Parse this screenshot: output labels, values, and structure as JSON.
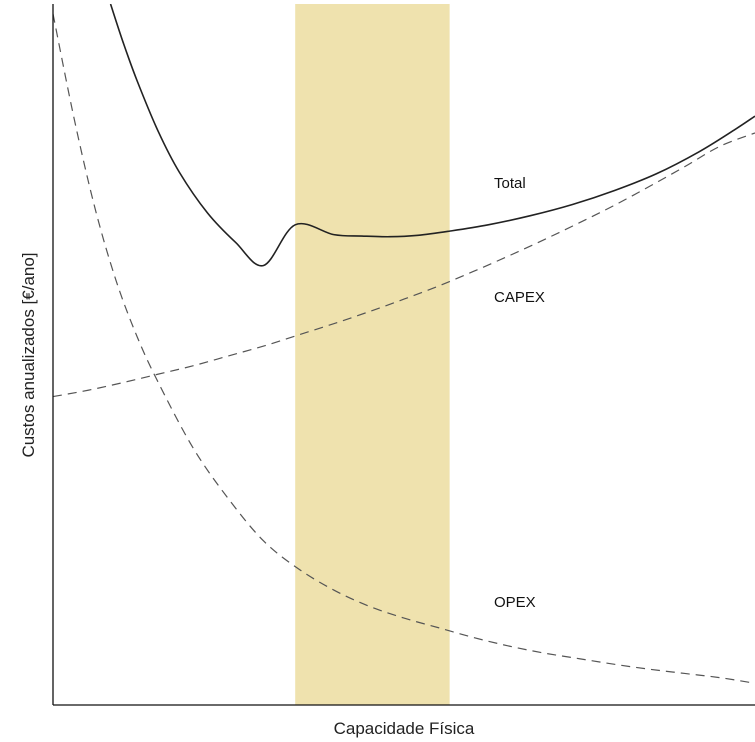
{
  "chart_data": {
    "type": "line",
    "title": "",
    "xlabel": "Capacidade Física",
    "ylabel": "Custos anualizados [€/ano]",
    "xlim": [
      0,
      100
    ],
    "ylim": [
      0,
      100
    ],
    "ticks": "none",
    "grid": false,
    "legend": "none (curves labelled directly)",
    "shaded_region": {
      "x": [
        34.5,
        56.5
      ],
      "color": "#efe2ae"
    },
    "series": [
      {
        "name": "Total",
        "style": "solid",
        "color": "#222222",
        "x": [
          8.2,
          10,
          12,
          15,
          18,
          22,
          26,
          30,
          34.5,
          40,
          44,
          48,
          52,
          56.5,
          62,
          68,
          74,
          80,
          86,
          92,
          97,
          100
        ],
        "y": [
          100,
          94.5,
          89.0,
          81.8,
          76.0,
          70.2,
          66.0,
          62.7,
          68.5,
          67.1,
          66.9,
          66.8,
          67.0,
          67.6,
          68.5,
          69.8,
          71.4,
          73.4,
          75.8,
          78.9,
          82.0,
          84.0
        ]
      },
      {
        "name": "CAPEX",
        "style": "dashed",
        "color": "#555555",
        "x": [
          0,
          5,
          10,
          15,
          20,
          25,
          30,
          35,
          40,
          45,
          50,
          55,
          60,
          65,
          70,
          75,
          80,
          85,
          90,
          95,
          100
        ],
        "y": [
          44.0,
          44.9,
          46.0,
          47.2,
          48.4,
          49.8,
          51.2,
          52.8,
          54.4,
          56.1,
          57.9,
          59.8,
          61.9,
          64.1,
          66.4,
          68.8,
          71.3,
          74.0,
          76.8,
          79.7,
          81.6
        ]
      },
      {
        "name": "OPEX",
        "style": "dashed",
        "color": "#555555",
        "x": [
          0,
          3,
          6,
          9,
          12,
          15,
          20,
          25,
          30,
          35,
          40,
          45,
          50,
          55,
          60,
          65,
          70,
          75,
          80,
          85,
          90,
          95,
          100
        ],
        "y": [
          98.6,
          83.7,
          70.8,
          60.5,
          52.5,
          46.0,
          36.6,
          29.4,
          23.4,
          19.4,
          16.4,
          14.1,
          12.4,
          11.0,
          9.6,
          8.4,
          7.4,
          6.6,
          5.8,
          5.1,
          4.5,
          3.9,
          3.1
        ]
      }
    ]
  }
}
